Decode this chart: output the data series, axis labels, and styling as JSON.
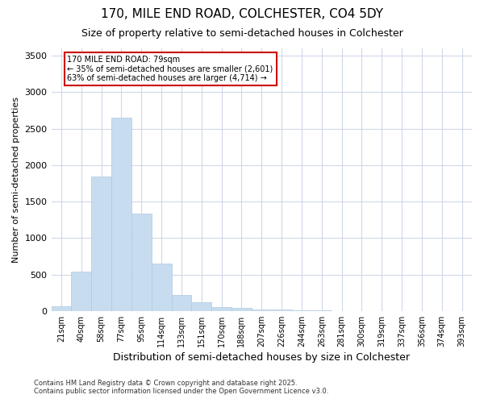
{
  "title_line1": "170, MILE END ROAD, COLCHESTER, CO4 5DY",
  "title_line2": "Size of property relative to semi-detached houses in Colchester",
  "xlabel": "Distribution of semi-detached houses by size in Colchester",
  "ylabel": "Number of semi-detached properties",
  "footnote": "Contains HM Land Registry data © Crown copyright and database right 2025.\nContains public sector information licensed under the Open Government Licence v3.0.",
  "categories": [
    "21sqm",
    "40sqm",
    "58sqm",
    "77sqm",
    "95sqm",
    "114sqm",
    "133sqm",
    "151sqm",
    "170sqm",
    "188sqm",
    "207sqm",
    "226sqm",
    "244sqm",
    "263sqm",
    "281sqm",
    "300sqm",
    "319sqm",
    "337sqm",
    "356sqm",
    "374sqm",
    "393sqm"
  ],
  "values": [
    60,
    540,
    1840,
    2650,
    1340,
    650,
    220,
    115,
    55,
    40,
    25,
    20,
    10,
    5,
    3,
    2,
    1,
    1,
    0,
    0,
    0
  ],
  "bar_color": "#c8dcef",
  "bar_edgecolor": "#b0c8e0",
  "annotation_text": "170 MILE END ROAD: 79sqm\n← 35% of semi-detached houses are smaller (2,601)\n63% of semi-detached houses are larger (4,714) →",
  "annotation_box_color": "#ffffff",
  "annotation_box_edgecolor": "#cc0000",
  "ylim": [
    0,
    3600
  ],
  "yticks": [
    0,
    500,
    1000,
    1500,
    2000,
    2500,
    3000,
    3500
  ],
  "grid_color": "#d0d8e8",
  "background_color": "#ffffff",
  "title1_fontsize": 11,
  "title2_fontsize": 9,
  "xlabel_fontsize": 9,
  "ylabel_fontsize": 8,
  "tick_fontsize": 7,
  "footnote_fontsize": 6
}
